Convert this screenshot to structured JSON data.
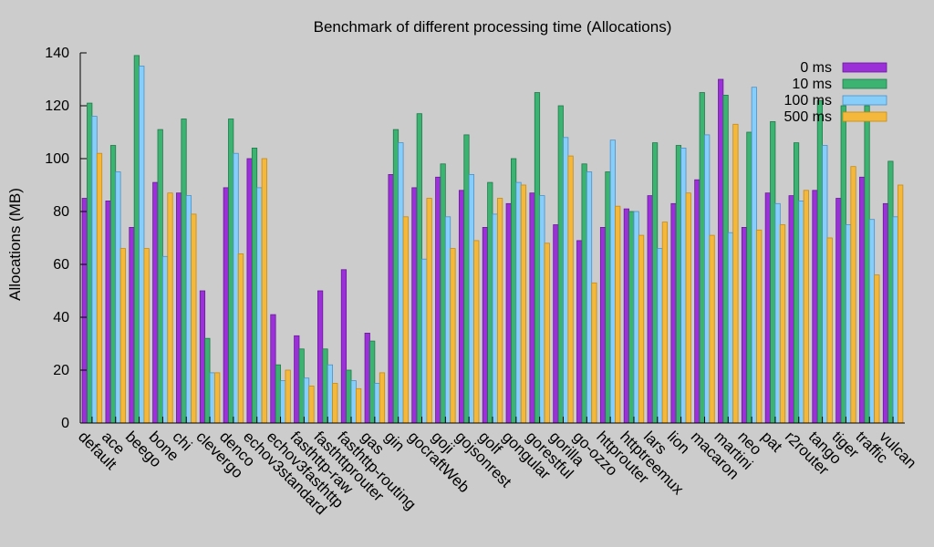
{
  "chart_data": {
    "type": "bar",
    "title": "Benchmark of different processing time (Allocations)",
    "xlabel": "",
    "ylabel": "Allocations (MB)",
    "ylim": [
      0,
      140
    ],
    "yticks": [
      0,
      20,
      40,
      60,
      80,
      100,
      120,
      140
    ],
    "legend_position": "top-right",
    "categories": [
      "default",
      "ace",
      "beego",
      "bone",
      "chi",
      "clevergo",
      "denco",
      "echov3standard",
      "echov3fasthttp",
      "fasthttp-raw",
      "fasthttprouter",
      "fasthttp-routing",
      "gas",
      "gin",
      "gocraftWeb",
      "goji",
      "gojsonrest",
      "golf",
      "gongular",
      "gorestful",
      "gorilla",
      "go-ozzo",
      "httprouter",
      "httptreemux",
      "lars",
      "lion",
      "macaron",
      "martini",
      "neo",
      "pat",
      "r2router",
      "tango",
      "tiger",
      "traffic",
      "vulcan"
    ],
    "series": [
      {
        "name": "0 ms",
        "color": "#9b30d9",
        "stroke": "#6a1a9a",
        "values": [
          85,
          84,
          74,
          91,
          87,
          50,
          89,
          100,
          41,
          33,
          50,
          58,
          34,
          94,
          89,
          93,
          88,
          74,
          83,
          87,
          75,
          69,
          74,
          81,
          86,
          83,
          92,
          130,
          74,
          87,
          86,
          88,
          85,
          93,
          83
        ]
      },
      {
        "name": "10 ms",
        "color": "#3cb371",
        "stroke": "#1e7a4a",
        "values": [
          121,
          105,
          139,
          111,
          115,
          32,
          115,
          104,
          22,
          28,
          28,
          20,
          31,
          111,
          117,
          98,
          109,
          91,
          100,
          125,
          120,
          98,
          95,
          80,
          106,
          105,
          125,
          124,
          110,
          114,
          106,
          122,
          120,
          120,
          99
        ]
      },
      {
        "name": "100 ms",
        "color": "#87cefa",
        "stroke": "#4a90c8",
        "values": [
          116,
          95,
          135,
          63,
          86,
          19,
          102,
          89,
          16,
          17,
          22,
          16,
          15,
          106,
          62,
          78,
          94,
          79,
          91,
          86,
          108,
          95,
          107,
          80,
          66,
          104,
          109,
          72,
          127,
          83,
          84,
          105,
          75,
          77,
          78
        ]
      },
      {
        "name": "500 ms",
        "color": "#f4b83c",
        "stroke": "#c88a10",
        "values": [
          102,
          66,
          66,
          87,
          79,
          19,
          64,
          100,
          20,
          14,
          15,
          13,
          19,
          78,
          85,
          66,
          69,
          85,
          90,
          68,
          101,
          53,
          82,
          71,
          76,
          87,
          71,
          113,
          73,
          75,
          88,
          70,
          97,
          56,
          90
        ]
      }
    ]
  }
}
